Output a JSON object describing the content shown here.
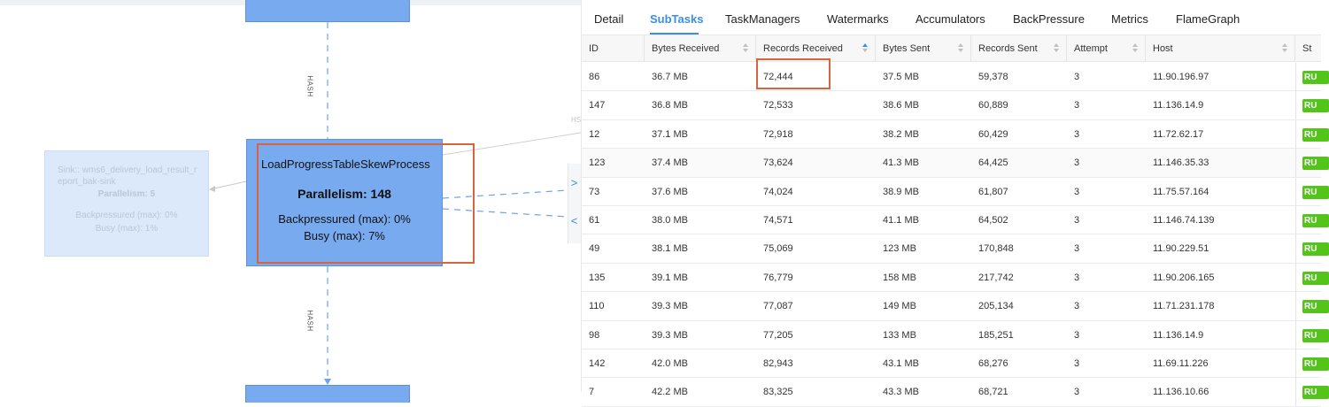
{
  "graph": {
    "edge_labels": [
      "HASH",
      "HASH",
      "HS"
    ],
    "main_node": {
      "name": "LoadProgressTableSkewProcess",
      "parallelism": "Parallelism: 148",
      "backpressured": "Backpressured (max): 0%",
      "busy": "Busy (max): 7%"
    },
    "sink_node": {
      "name": "Sink:: wms6_delivery_load_result_report_bak-sink",
      "parallelism": "Parallelism: 5",
      "backpressured": "Backpressured (max): 0%",
      "busy": "Busy (max): 1%"
    },
    "collapse_icons": [
      ">",
      "<"
    ]
  },
  "panel": {
    "tabs": [
      "Detail",
      "SubTasks",
      "TaskManagers",
      "Watermarks",
      "Accumulators",
      "BackPressure",
      "Metrics",
      "FlameGraph"
    ],
    "active_tab": "SubTasks",
    "columns": [
      "ID",
      "Bytes Received",
      "Records Received",
      "Bytes Sent",
      "Records Sent",
      "Attempt",
      "Host",
      "St"
    ],
    "status_label": "RU",
    "rows": [
      [
        "86",
        "36.7 MB",
        "72,444",
        "37.5 MB",
        "59,378",
        "3",
        "11.90.196.97"
      ],
      [
        "147",
        "36.8 MB",
        "72,533",
        "38.6 MB",
        "60,889",
        "3",
        "11.136.14.9"
      ],
      [
        "12",
        "37.1 MB",
        "72,918",
        "38.2 MB",
        "60,429",
        "3",
        "11.72.62.17"
      ],
      [
        "123",
        "37.4 MB",
        "73,624",
        "41.3 MB",
        "64,425",
        "3",
        "11.146.35.33"
      ],
      [
        "73",
        "37.6 MB",
        "74,024",
        "38.9 MB",
        "61,807",
        "3",
        "11.75.57.164"
      ],
      [
        "61",
        "38.0 MB",
        "74,571",
        "41.1 MB",
        "64,502",
        "3",
        "11.146.74.139"
      ],
      [
        "49",
        "38.1 MB",
        "75,069",
        "123 MB",
        "170,848",
        "3",
        "11.90.229.51"
      ],
      [
        "135",
        "39.1 MB",
        "76,779",
        "158 MB",
        "217,742",
        "3",
        "11.90.206.165"
      ],
      [
        "110",
        "39.3 MB",
        "77,087",
        "149 MB",
        "205,134",
        "3",
        "11.71.231.178"
      ],
      [
        "98",
        "39.3 MB",
        "77,205",
        "133 MB",
        "185,251",
        "3",
        "11.136.14.9"
      ],
      [
        "142",
        "42.0 MB",
        "82,943",
        "43.1 MB",
        "68,276",
        "3",
        "11.69.11.226"
      ],
      [
        "7",
        "42.2 MB",
        "83,325",
        "43.3 MB",
        "68,721",
        "3",
        "11.136.10.66"
      ]
    ]
  },
  "colors": {
    "accent": "#3a8ee6",
    "node_fill": "#78aaf0",
    "highlight": "#d9623f",
    "status_running": "#52c41a"
  }
}
